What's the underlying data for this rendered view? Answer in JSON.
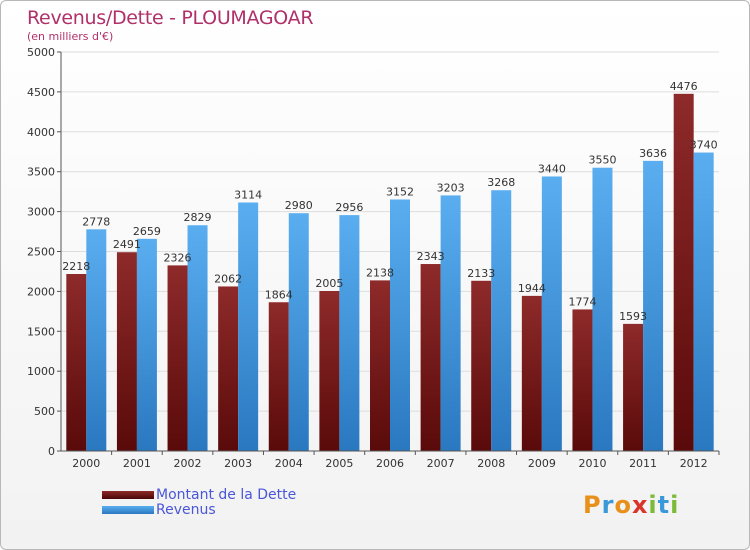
{
  "title": "Revenus/Dette - PLOUMAGOAR",
  "subtitle": "(en milliers d'€)",
  "colors": {
    "dette": "#7a1b1b",
    "revenus": "#3f8fd6",
    "title": "#b0306a",
    "legend_text": "#4a56d8"
  },
  "logo": {
    "letters": [
      "P",
      "r",
      "o",
      "x",
      "i",
      "t",
      "i"
    ],
    "colors": [
      "#e8901a",
      "#3a9ad9",
      "#e8901a",
      "#d9352a",
      "#7cba3a",
      "#3a9ad9",
      "#7cba3a"
    ]
  },
  "chart_data": {
    "type": "bar",
    "title": "Revenus/Dette - PLOUMAGOAR",
    "subtitle": "(en milliers d'€)",
    "categories": [
      "2000",
      "2001",
      "2002",
      "2003",
      "2004",
      "2005",
      "2006",
      "2007",
      "2008",
      "2009",
      "2010",
      "2011",
      "2012"
    ],
    "series": [
      {
        "name": "Montant de la Dette",
        "values": [
          2218,
          2491,
          2326,
          2062,
          1864,
          2005,
          2138,
          2343,
          2133,
          1944,
          1774,
          1593,
          4476
        ]
      },
      {
        "name": "Revenus",
        "values": [
          2778,
          2659,
          2829,
          3114,
          2980,
          2956,
          3152,
          3203,
          3268,
          3440,
          3550,
          3636,
          3740
        ]
      }
    ],
    "yticks": [
      0,
      500,
      1000,
      1500,
      2000,
      2500,
      3000,
      3500,
      4000,
      4500,
      5000
    ],
    "ylim": [
      0,
      5000
    ],
    "grid": true,
    "legend_position": "bottom-left"
  }
}
